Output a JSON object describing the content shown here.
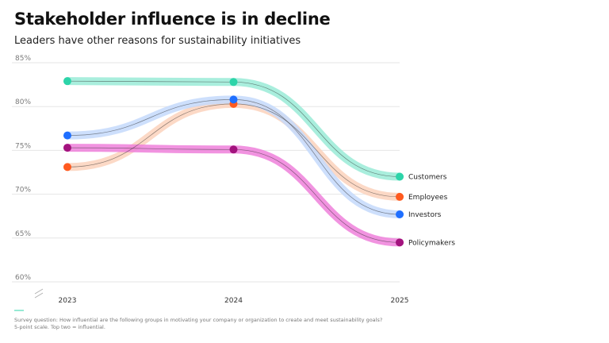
{
  "header": {
    "title": "Stakeholder influence is in decline",
    "subtitle": "Leaders have other reasons for sustainability initiatives"
  },
  "footnote": {
    "line1": "Survey question: How influential are the following groups in motivating your company or organization to create and meet sustainability goals?",
    "line2": "5-point scale. Top two = influential."
  },
  "chart_data": {
    "type": "line",
    "title": "Stakeholder influence is in decline",
    "subtitle": "Leaders have other reasons for sustainability initiatives",
    "x": [
      "2023",
      "2024",
      "2025"
    ],
    "ylim": [
      60,
      85
    ],
    "yticks": [
      60,
      65,
      70,
      75,
      80,
      85
    ],
    "ytick_labels": [
      "60%",
      "65%",
      "70%",
      "75%",
      "80%",
      "85%"
    ],
    "grid": true,
    "legend": "right-end labels",
    "series": [
      {
        "name": "Customers",
        "values": [
          82.9,
          82.8,
          72.0
        ],
        "color": "#2dd4a9",
        "band": "#9aebd7"
      },
      {
        "name": "Employees",
        "values": [
          73.1,
          80.3,
          69.7
        ],
        "color": "#ff5a1f",
        "band": "#fbd2bc"
      },
      {
        "name": "Investors",
        "values": [
          76.7,
          80.8,
          67.7
        ],
        "color": "#1f6fff",
        "band": "#c4d9fb"
      },
      {
        "name": "Policymakers",
        "values": [
          75.3,
          75.1,
          64.5
        ],
        "color": "#a3137e",
        "band": "#ee80da"
      }
    ]
  }
}
